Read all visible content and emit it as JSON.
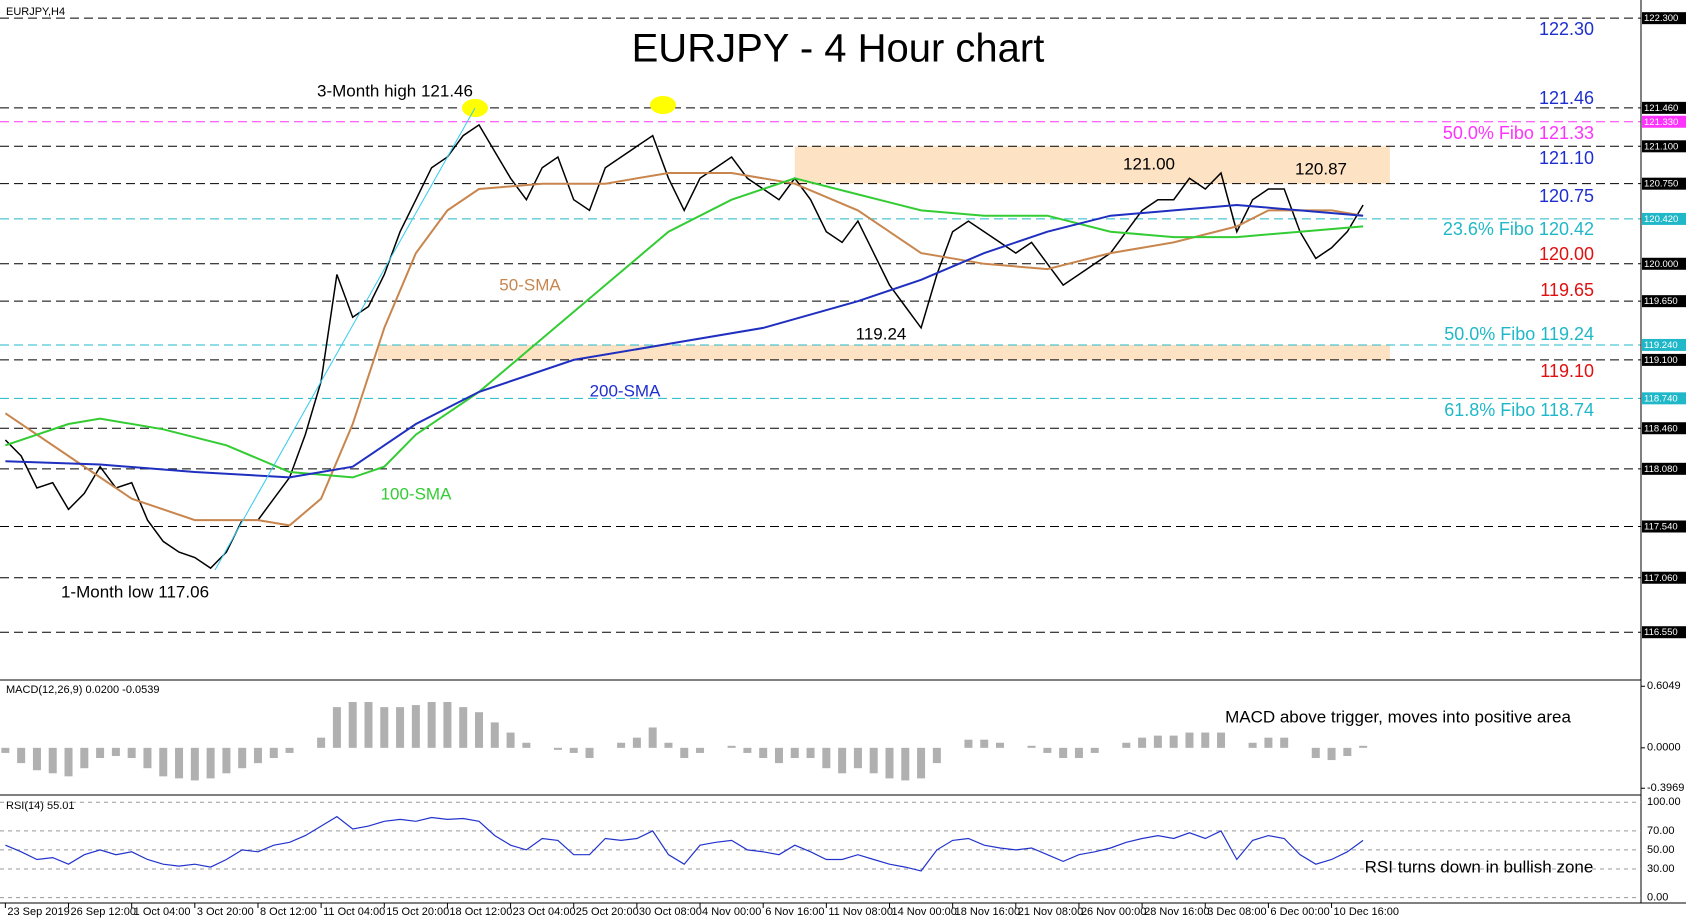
{
  "chart_data": {
    "type": "line",
    "title": "EURJPY - 4 Hour chart",
    "symbol_label": "EURJPY,H4",
    "xlim": [
      -0.34,
      103.6
    ],
    "xticks": [
      {
        "value": 0,
        "label": "23 Sep 2019"
      },
      {
        "value": 4,
        "label": "26 Sep 12:00"
      },
      {
        "value": 8,
        "label": "1 Oct 04:00"
      },
      {
        "value": 12,
        "label": "3 Oct 20:00"
      },
      {
        "value": 16,
        "label": "8 Oct 12:00"
      },
      {
        "value": 20,
        "label": "11 Oct 04:00"
      },
      {
        "value": 24,
        "label": "15 Oct 20:00"
      },
      {
        "value": 28,
        "label": "18 Oct 12:00"
      },
      {
        "value": 32,
        "label": "23 Oct 04:00"
      },
      {
        "value": 36,
        "label": "25 Oct 20:00"
      },
      {
        "value": 40,
        "label": "30 Oct 08:00"
      },
      {
        "value": 44,
        "label": "4 Nov 00:00"
      },
      {
        "value": 48,
        "label": "6 Nov 16:00"
      },
      {
        "value": 52,
        "label": "11 Nov 08:00"
      },
      {
        "value": 56,
        "label": "14 Nov 00:00"
      },
      {
        "value": 60,
        "label": "18 Nov 16:00"
      },
      {
        "value": 64,
        "label": "21 Nov 08:00"
      },
      {
        "value": 68,
        "label": "26 Nov 00:00"
      },
      {
        "value": 72,
        "label": "28 Nov 16:00"
      },
      {
        "value": 76,
        "label": "3 Dec 08:00"
      },
      {
        "value": 80,
        "label": "6 Dec 00:00"
      },
      {
        "value": 84,
        "label": "10 Dec 16:00"
      }
    ],
    "ylim": [
      116.14,
      122.47
    ],
    "yticks": [
      {
        "value": 122.3,
        "label": "122.300"
      },
      {
        "value": 121.46,
        "label": "121.460"
      },
      {
        "value": 121.33,
        "label": "121.330"
      },
      {
        "value": 121.1,
        "label": "121.100"
      },
      {
        "value": 120.75,
        "label": "120.750"
      },
      {
        "value": 120.42,
        "label": "120.420"
      },
      {
        "value": 120.0,
        "label": "120.000"
      },
      {
        "value": 119.65,
        "label": "119.650"
      },
      {
        "value": 119.24,
        "label": "119.240"
      },
      {
        "value": 119.1,
        "label": "119.100"
      },
      {
        "value": 118.74,
        "label": "118.740"
      },
      {
        "value": 118.46,
        "label": "118.460"
      },
      {
        "value": 118.08,
        "label": "118.080"
      },
      {
        "value": 117.54,
        "label": "117.540"
      },
      {
        "value": 117.06,
        "label": "117.060"
      },
      {
        "value": 116.55,
        "label": "116.550"
      }
    ],
    "ytick_colors": [
      "#000000",
      "#000000",
      "#ff33ff",
      "#000000",
      "#000000",
      "#20b8c8",
      "#000000",
      "#000000",
      "#20b8c8",
      "#000000",
      "#20b8c8",
      "#000000",
      "#000000",
      "#000000",
      "#000000",
      "#000000"
    ],
    "zones": [
      {
        "x": [
          50,
          87.7
        ],
        "y": [
          120.75,
          121.1
        ]
      },
      {
        "x": [
          23.6,
          87.7
        ],
        "y": [
          119.1,
          119.24
        ]
      }
    ],
    "zone_color": "#fde3c4",
    "x": [
      0,
      1,
      2,
      3,
      4,
      5,
      6,
      7,
      8,
      9,
      10,
      11,
      12,
      13,
      14,
      15,
      16,
      17,
      18,
      19,
      20,
      21,
      22,
      23,
      24,
      25,
      26,
      27,
      28,
      29,
      30,
      31,
      32,
      33,
      34,
      35,
      36,
      37,
      38,
      39,
      40,
      41,
      42,
      43,
      44,
      45,
      46,
      47,
      48,
      49,
      50,
      51,
      52,
      53,
      54,
      55,
      56,
      57,
      58,
      59,
      60,
      61,
      62,
      63,
      64,
      65,
      66,
      67,
      68,
      69,
      70,
      71,
      72,
      73,
      74,
      75,
      76,
      77,
      78,
      79,
      80,
      81,
      82,
      83,
      84,
      85,
      86
    ],
    "series": [
      {
        "name": "EURJPY",
        "color": "#000000",
        "values": [
          118.35,
          118.2,
          117.9,
          117.95,
          117.7,
          117.85,
          118.1,
          117.9,
          117.95,
          117.6,
          117.4,
          117.3,
          117.25,
          117.15,
          117.3,
          117.6,
          117.6,
          117.8,
          118.0,
          118.4,
          118.9,
          119.9,
          119.5,
          119.6,
          119.9,
          120.3,
          120.6,
          120.9,
          121.0,
          121.2,
          121.3,
          121.05,
          120.8,
          120.6,
          120.9,
          121.0,
          120.6,
          120.5,
          120.9,
          121.0,
          121.1,
          121.2,
          120.8,
          120.5,
          120.8,
          120.9,
          121.0,
          120.8,
          120.7,
          120.6,
          120.8,
          120.6,
          120.3,
          120.2,
          120.4,
          120.1,
          119.8,
          119.6,
          119.4,
          119.9,
          120.3,
          120.4,
          120.3,
          120.2,
          120.1,
          120.2,
          120.0,
          119.8,
          119.9,
          120.0,
          120.1,
          120.3,
          120.5,
          120.6,
          120.6,
          120.8,
          120.7,
          120.85,
          120.3,
          120.6,
          120.7,
          120.7,
          120.3,
          120.05,
          120.15,
          120.3,
          120.55
        ]
      },
      {
        "name": "50-SMA",
        "color": "#c8864e",
        "x": [
          0,
          4,
          8,
          12,
          16,
          18,
          20,
          22,
          24,
          26,
          28,
          30,
          34,
          38,
          42,
          46,
          50,
          54,
          58,
          62,
          66,
          70,
          74,
          78,
          80,
          84,
          86
        ],
        "values": [
          118.6,
          118.2,
          117.8,
          117.6,
          117.6,
          117.55,
          117.8,
          118.5,
          119.4,
          120.1,
          120.5,
          120.7,
          120.75,
          120.75,
          120.85,
          120.85,
          120.75,
          120.5,
          120.1,
          120.0,
          119.95,
          120.1,
          120.2,
          120.35,
          120.5,
          120.5,
          120.45
        ]
      },
      {
        "name": "100-SMA",
        "color": "#33cc33",
        "x": [
          0,
          4,
          6,
          10,
          14,
          18,
          22,
          24,
          26,
          30,
          34,
          38,
          42,
          46,
          50,
          54,
          58,
          62,
          66,
          70,
          74,
          78,
          82,
          86
        ],
        "values": [
          118.3,
          118.5,
          118.55,
          118.45,
          118.3,
          118.05,
          118.0,
          118.1,
          118.4,
          118.8,
          119.3,
          119.8,
          120.3,
          120.6,
          120.8,
          120.65,
          120.5,
          120.45,
          120.45,
          120.3,
          120.25,
          120.25,
          120.3,
          120.35
        ]
      },
      {
        "name": "200-SMA",
        "color": "#1f2fbf",
        "x": [
          0,
          6,
          12,
          18,
          22,
          26,
          30,
          36,
          42,
          48,
          54,
          58,
          62,
          66,
          70,
          74,
          78,
          82,
          86
        ],
        "values": [
          118.15,
          118.12,
          118.05,
          118.0,
          118.1,
          118.5,
          118.8,
          119.1,
          119.25,
          119.4,
          119.65,
          119.85,
          120.1,
          120.3,
          120.45,
          120.5,
          120.55,
          120.5,
          120.45
        ]
      }
    ],
    "macd": {
      "label": "MACD(12,26,9) 0.0200 -0.0539",
      "color": "#b0b0b0",
      "ylim": [
        -0.424,
        0.637
      ],
      "yticks": [
        0.6049,
        {
          "value": 0,
          "label": "0.0000"
        },
        -0.3969
      ],
      "values": [
        -0.05,
        -0.15,
        -0.22,
        -0.25,
        -0.28,
        -0.2,
        -0.1,
        -0.08,
        -0.1,
        -0.2,
        -0.28,
        -0.3,
        -0.32,
        -0.3,
        -0.25,
        -0.2,
        -0.15,
        -0.1,
        -0.05,
        0.0,
        0.1,
        0.4,
        0.45,
        0.45,
        0.4,
        0.4,
        0.42,
        0.45,
        0.45,
        0.4,
        0.35,
        0.25,
        0.15,
        0.05,
        0.0,
        -0.02,
        -0.05,
        -0.1,
        0.0,
        0.05,
        0.1,
        0.2,
        0.05,
        -0.1,
        -0.05,
        0.0,
        0.02,
        -0.05,
        -0.1,
        -0.15,
        -0.1,
        -0.1,
        -0.2,
        -0.25,
        -0.2,
        -0.25,
        -0.3,
        -0.32,
        -0.3,
        -0.15,
        0.0,
        0.08,
        0.08,
        0.05,
        0.0,
        0.02,
        -0.05,
        -0.1,
        -0.1,
        -0.05,
        0.0,
        0.05,
        0.1,
        0.12,
        0.12,
        0.15,
        0.15,
        0.15,
        0.0,
        0.05,
        0.1,
        0.1,
        0.0,
        -0.1,
        -0.12,
        -0.08,
        0.02
      ]
    },
    "rsi": {
      "label": "RSI(14) 55.01",
      "color": "#2233cc",
      "ylim": [
        -5.7,
        104.5
      ],
      "yticks": [
        {
          "value": 100,
          "label": "100.00"
        },
        {
          "value": 70,
          "label": "70.00"
        },
        {
          "value": 50,
          "label": "50.00"
        },
        {
          "value": 30,
          "label": "30.00"
        },
        {
          "value": 0,
          "label": "0.00"
        }
      ],
      "values": [
        55,
        48,
        40,
        42,
        35,
        45,
        50,
        45,
        48,
        40,
        35,
        33,
        35,
        32,
        40,
        50,
        48,
        55,
        58,
        65,
        75,
        85,
        72,
        75,
        80,
        82,
        80,
        84,
        82,
        83,
        80,
        65,
        55,
        50,
        62,
        60,
        45,
        45,
        62,
        60,
        62,
        70,
        45,
        35,
        55,
        58,
        60,
        50,
        48,
        45,
        55,
        48,
        40,
        40,
        45,
        40,
        35,
        32,
        28,
        50,
        60,
        62,
        55,
        52,
        50,
        52,
        45,
        38,
        45,
        48,
        52,
        58,
        62,
        65,
        62,
        68,
        62,
        70,
        40,
        60,
        65,
        62,
        45,
        35,
        40,
        48,
        60
      ]
    },
    "annotations": [
      "3-Month high 121.46",
      "1-Month low 117.06",
      "50-SMA",
      "100-SMA",
      "200-SMA",
      "121.00",
      "120.87",
      "119.24",
      "MACD above trigger, moves into positive area",
      "RSI turns down in bullish zone",
      "122.30",
      "121.46",
      "50.0% Fibo 121.33",
      "121.10",
      "120.75",
      "23.6% Fibo 120.42",
      "120.00",
      "119.65",
      "50.0% Fibo 119.24",
      "119.10",
      "61.8% Fibo 118.74"
    ]
  }
}
